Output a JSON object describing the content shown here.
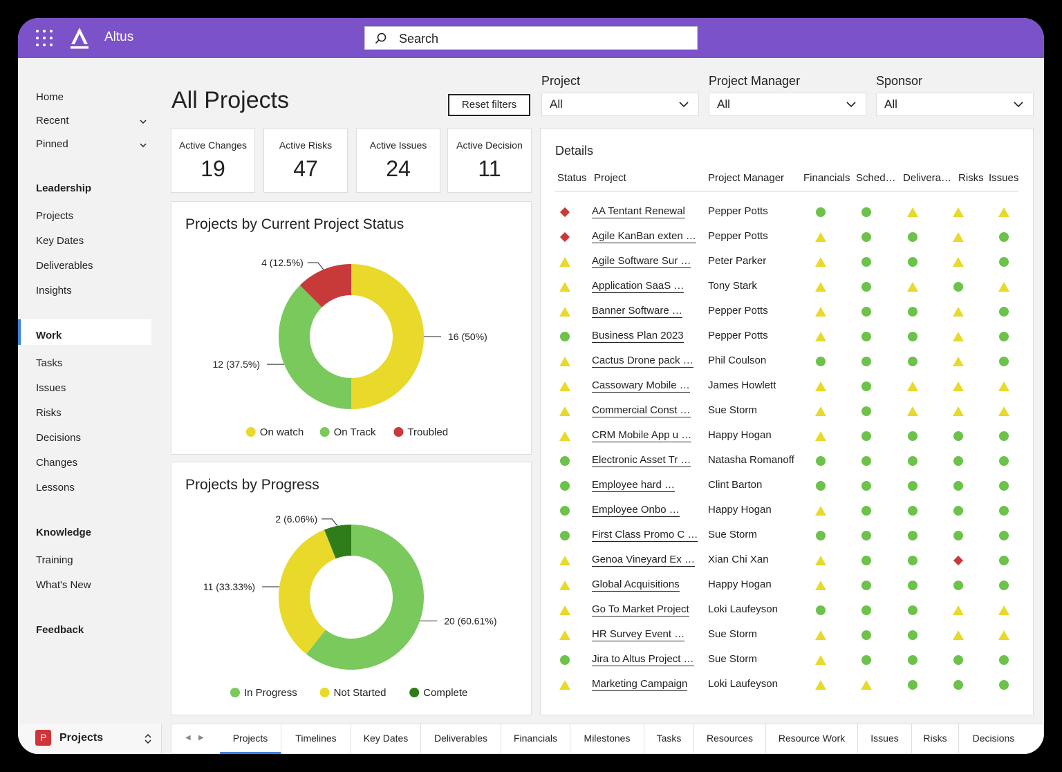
{
  "app": {
    "name": "Altus"
  },
  "search": {
    "placeholder": "Search"
  },
  "sidebar": {
    "home": "Home",
    "recent": "Recent",
    "pinned": "Pinned",
    "leadership": {
      "heading": "Leadership",
      "items": [
        "Projects",
        "Key Dates",
        "Deliverables",
        "Insights"
      ]
    },
    "work": {
      "heading": "Work",
      "items": [
        "Tasks",
        "Issues",
        "Risks",
        "Decisions",
        "Changes",
        "Lessons"
      ]
    },
    "knowledge": {
      "heading": "Knowledge",
      "items": [
        "Training",
        "What's New"
      ]
    },
    "feedback": "Feedback"
  },
  "page": {
    "title": "All Projects",
    "reset_label": "Reset filters"
  },
  "filters": [
    {
      "label": "Project",
      "value": "All"
    },
    {
      "label": "Project Manager",
      "value": "All"
    },
    {
      "label": "Sponsor",
      "value": "All"
    }
  ],
  "cards": [
    {
      "label": "Active Changes",
      "value": "19"
    },
    {
      "label": "Active Risks",
      "value": "47"
    },
    {
      "label": "Active Issues",
      "value": "24"
    },
    {
      "label": "Active Decision",
      "value": "11"
    }
  ],
  "colors": {
    "accent": "#7b52c7",
    "green": "#6cc24a",
    "yellow": "#e8d92b",
    "red": "#c83a3a",
    "dark_green": "#2e7d1a",
    "tab_underline": "#3f7fe0"
  },
  "chart_data": [
    {
      "type": "pie",
      "variant": "donut",
      "title": "Projects by Current Project Status",
      "categories": [
        "On watch",
        "On Track",
        "Troubled"
      ],
      "values": [
        16,
        12,
        4
      ],
      "labels": [
        "16 (50%)",
        "12 (37.5%)",
        "4 (12.5%)"
      ],
      "colors": [
        "#e8d92b",
        "#7ac95c",
        "#c83a3a"
      ],
      "legend": "bottom"
    },
    {
      "type": "pie",
      "variant": "donut",
      "title": "Projects by Progress",
      "categories": [
        "In Progress",
        "Not Started",
        "Complete"
      ],
      "values": [
        20,
        11,
        2
      ],
      "labels": [
        "20 (60.61%)",
        "11 (33.33%)",
        "2 (6.06%)"
      ],
      "colors": [
        "#7ac95c",
        "#e8d92b",
        "#2e7d1a"
      ],
      "legend": "bottom"
    }
  ],
  "details": {
    "title": "Details",
    "columns": [
      "Status",
      "Project",
      "Project Manager",
      "Financials",
      "Sched…",
      "Delivera…",
      "Risks",
      "Issues"
    ],
    "rows": [
      {
        "status": "red",
        "project": "AA Tentant Renewal",
        "pm": "Pepper Potts",
        "fin": "green",
        "sch": "green",
        "del": "yellow",
        "risks": "yellow",
        "issues": "yellow"
      },
      {
        "status": "red",
        "project": "Agile KanBan exten …",
        "pm": "Pepper Potts",
        "fin": "yellow",
        "sch": "green",
        "del": "green",
        "risks": "yellow",
        "issues": "green"
      },
      {
        "status": "yellow",
        "project": "Agile Software Sur …",
        "pm": "Peter Parker",
        "fin": "yellow",
        "sch": "green",
        "del": "green",
        "risks": "yellow",
        "issues": "green"
      },
      {
        "status": "yellow",
        "project": "Application SaaS …",
        "pm": "Tony Stark",
        "fin": "yellow",
        "sch": "green",
        "del": "yellow",
        "risks": "green",
        "issues": "yellow"
      },
      {
        "status": "yellow",
        "project": "Banner Software …",
        "pm": "Pepper Potts",
        "fin": "yellow",
        "sch": "green",
        "del": "green",
        "risks": "yellow",
        "issues": "green"
      },
      {
        "status": "green",
        "project": "Business Plan 2023",
        "pm": "Pepper Potts",
        "fin": "yellow",
        "sch": "green",
        "del": "green",
        "risks": "yellow",
        "issues": "green"
      },
      {
        "status": "yellow",
        "project": "Cactus Drone pack …",
        "pm": "Phil Coulson",
        "fin": "green",
        "sch": "green",
        "del": "green",
        "risks": "yellow",
        "issues": "green"
      },
      {
        "status": "yellow",
        "project": "Cassowary Mobile …",
        "pm": "James Howlett",
        "fin": "yellow",
        "sch": "green",
        "del": "yellow",
        "risks": "yellow",
        "issues": "yellow"
      },
      {
        "status": "yellow",
        "project": "Commercial Const …",
        "pm": "Sue Storm",
        "fin": "yellow",
        "sch": "green",
        "del": "yellow",
        "risks": "yellow",
        "issues": "yellow"
      },
      {
        "status": "yellow",
        "project": "CRM Mobile App u …",
        "pm": "Happy Hogan",
        "fin": "yellow",
        "sch": "green",
        "del": "green",
        "risks": "green",
        "issues": "green"
      },
      {
        "status": "green",
        "project": "Electronic Asset Tr …",
        "pm": "Natasha Romanoff",
        "fin": "green",
        "sch": "green",
        "del": "green",
        "risks": "green",
        "issues": "green"
      },
      {
        "status": "green",
        "project": "Employee hard …",
        "pm": "Clint Barton",
        "fin": "green",
        "sch": "green",
        "del": "green",
        "risks": "green",
        "issues": "green"
      },
      {
        "status": "green",
        "project": "Employee Onbo …",
        "pm": "Happy Hogan",
        "fin": "yellow",
        "sch": "green",
        "del": "green",
        "risks": "green",
        "issues": "green"
      },
      {
        "status": "green",
        "project": "First Class Promo C …",
        "pm": "Sue Storm",
        "fin": "green",
        "sch": "green",
        "del": "green",
        "risks": "green",
        "issues": "green"
      },
      {
        "status": "yellow",
        "project": "Genoa Vineyard Ex …",
        "pm": "Xian Chi Xan",
        "fin": "yellow",
        "sch": "green",
        "del": "green",
        "risks": "red",
        "issues": "green"
      },
      {
        "status": "yellow",
        "project": "Global Acquisitions",
        "pm": "Happy Hogan",
        "fin": "yellow",
        "sch": "green",
        "del": "green",
        "risks": "green",
        "issues": "green"
      },
      {
        "status": "yellow",
        "project": "Go To Market Project",
        "pm": "Loki Laufeyson",
        "fin": "green",
        "sch": "green",
        "del": "green",
        "risks": "yellow",
        "issues": "yellow"
      },
      {
        "status": "yellow",
        "project": "HR Survey Event …",
        "pm": "Sue Storm",
        "fin": "yellow",
        "sch": "green",
        "del": "green",
        "risks": "yellow",
        "issues": "yellow"
      },
      {
        "status": "green",
        "project": "Jira to Altus Project …",
        "pm": "Sue Storm",
        "fin": "yellow",
        "sch": "green",
        "del": "green",
        "risks": "green",
        "issues": "green"
      },
      {
        "status": "yellow",
        "project": "Marketing Campaign",
        "pm": "Loki Laufeyson",
        "fin": "yellow",
        "sch": "yellow",
        "del": "green",
        "risks": "green",
        "issues": "green"
      }
    ]
  },
  "bottom": {
    "project_selector": {
      "icon_letter": "P",
      "label": "Projects"
    },
    "tabs": [
      "Projects",
      "Timelines",
      "Key Dates",
      "Deliverables",
      "Financials",
      "Milestones",
      "Tasks",
      "Resources",
      "Resource Work",
      "Issues",
      "Risks",
      "Decisions"
    ],
    "nav_prev": "◀",
    "nav_next": "▶"
  }
}
